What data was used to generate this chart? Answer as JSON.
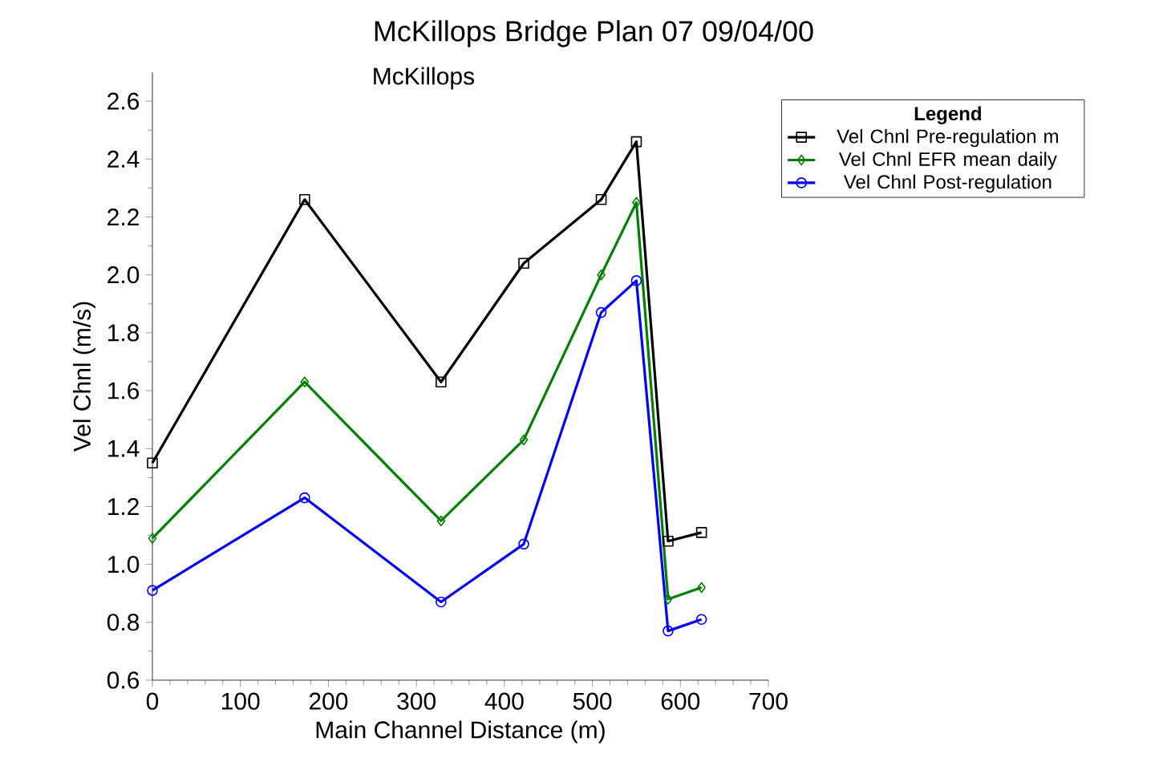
{
  "chart_data": {
    "type": "line",
    "title": "McKillops Bridge    Plan 07    09/04/00",
    "xlabel": "Main Channel Distance (m)",
    "ylabel": "Vel Chnl (m/s)",
    "legend_title": "Legend",
    "annotations": [
      "McKillops"
    ],
    "x": [
      0,
      173,
      328,
      422,
      510,
      550,
      586,
      624
    ],
    "series": [
      {
        "name": "Vel Chnl Pre-regulation m",
        "color": "#000000",
        "marker": "square",
        "values": [
          1.35,
          2.26,
          1.63,
          2.04,
          2.26,
          2.46,
          1.08,
          1.11
        ]
      },
      {
        "name": "Vel Chnl EFR mean daily",
        "color": "#008000",
        "marker": "diamond",
        "values": [
          1.09,
          1.63,
          1.15,
          1.43,
          2.0,
          2.25,
          0.88,
          0.92
        ]
      },
      {
        "name": "Vel Chnl Post-regulation",
        "color": "#0000ff",
        "marker": "circle",
        "values": [
          0.91,
          1.23,
          0.87,
          1.07,
          1.87,
          1.98,
          0.77,
          0.81
        ]
      }
    ],
    "xlim": [
      0,
      700
    ],
    "ylim": [
      0.6,
      2.7
    ],
    "xticks": [
      0,
      100,
      200,
      300,
      400,
      500,
      600,
      700
    ],
    "yticks": [
      0.6,
      0.8,
      {
        "value": 1.0,
        "label": "1.0"
      },
      1.2,
      1.4,
      1.6,
      1.8,
      {
        "value": 2.0,
        "label": "2.0"
      },
      2.2,
      2.4,
      2.6
    ],
    "grid": false,
    "legend": "top right",
    "line_style": "solid"
  }
}
